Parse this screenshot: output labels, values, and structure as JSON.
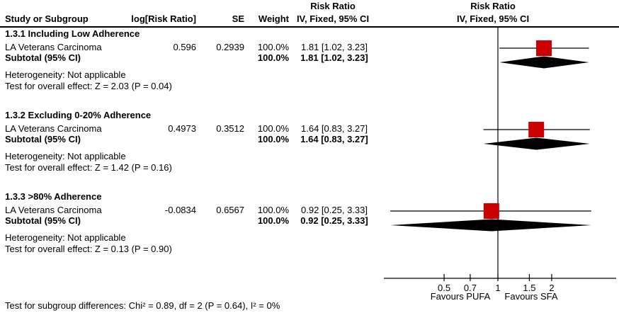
{
  "header": {
    "col_study": "Study or Subgroup",
    "col_log_rr": "log[Risk Ratio]",
    "col_se": "SE",
    "col_weight": "Weight",
    "effect_title_line1": "Risk Ratio",
    "effect_title_line2": "IV, Fixed, 95% CI",
    "plot_title_line1": "Risk Ratio",
    "plot_title_line2": "IV, Fixed, 95% CI"
  },
  "sections": [
    {
      "heading": "1.3.1 Including Low Adherence",
      "study": {
        "name": "LA Veterans Carcinoma",
        "log_rr": "0.596",
        "se": "0.2939",
        "weight": "100.0%",
        "ci": "1.81 [1.02, 3.23]"
      },
      "subtotal": {
        "label": "Subtotal (95% CI)",
        "weight": "100.0%",
        "ci": "1.81 [1.02, 3.23]"
      },
      "heterogeneity": "Heterogeneity: Not applicable",
      "overall_effect": "Test for overall effect: Z = 2.03 (P = 0.04)"
    },
    {
      "heading": "1.3.2 Excluding 0-20% Adherence",
      "study": {
        "name": "LA Veterans Carcinoma",
        "log_rr": "0.4973",
        "se": "0.3512",
        "weight": "100.0%",
        "ci": "1.64 [0.83, 3.27]"
      },
      "subtotal": {
        "label": "Subtotal (95% CI)",
        "weight": "100.0%",
        "ci": "1.64 [0.83, 3.27]"
      },
      "heterogeneity": "Heterogeneity: Not applicable",
      "overall_effect": "Test for overall effect: Z = 1.42 (P = 0.16)"
    },
    {
      "heading": "1.3.3 >80% Adherence",
      "study": {
        "name": "LA Veterans Carcinoma",
        "log_rr": "-0.0834",
        "se": "0.6567",
        "weight": "100.0%",
        "ci": "0.92 [0.25, 3.33]"
      },
      "subtotal": {
        "label": "Subtotal (95% CI)",
        "weight": "100.0%",
        "ci": "0.92 [0.25, 3.33]"
      },
      "heterogeneity": "Heterogeneity: Not applicable",
      "overall_effect": "Test for overall effect: Z = 0.13 (P = 0.90)"
    }
  ],
  "footer": {
    "subgroup_test": "Test for subgroup differences: Chi² = 0.89, df = 2 (P = 0.64), I² = 0%"
  },
  "axis": {
    "ticks": [
      "0.5",
      "0.7",
      "1",
      "1.5",
      "2"
    ],
    "favours_left": "Favours PUFA",
    "favours_right": "Favours SFA"
  },
  "chart_data": {
    "type": "forest",
    "scale": "log10",
    "effect_measure": "Risk Ratio",
    "method": "IV, Fixed, 95% CI",
    "null_value": 1,
    "marker_color": "#CC0000",
    "diamond_color": "#000000",
    "axis_ticks": [
      0.5,
      0.7,
      1,
      1.5,
      2
    ],
    "rows": [
      {
        "group": "1.3.1 Including Low Adherence",
        "label": "LA Veterans Carcinoma",
        "estimate": 1.81,
        "ci_low": 1.02,
        "ci_high": 3.23,
        "weight_pct": 100.0
      },
      {
        "group": "1.3.2 Excluding 0-20% Adherence",
        "label": "LA Veterans Carcinoma",
        "estimate": 1.64,
        "ci_low": 0.83,
        "ci_high": 3.27,
        "weight_pct": 100.0
      },
      {
        "group": "1.3.3 >80% Adherence",
        "label": "LA Veterans Carcinoma",
        "estimate": 0.92,
        "ci_low": 0.25,
        "ci_high": 3.33,
        "weight_pct": 100.0
      }
    ],
    "diamonds": [
      {
        "label": "Subtotal (95% CI)",
        "estimate": 1.81,
        "ci_low": 1.02,
        "ci_high": 3.23
      },
      {
        "label": "Subtotal (95% CI)",
        "estimate": 1.64,
        "ci_low": 0.83,
        "ci_high": 3.27
      },
      {
        "label": "Subtotal (95% CI)",
        "estimate": 0.92,
        "ci_low": 0.25,
        "ci_high": 3.33
      }
    ]
  }
}
